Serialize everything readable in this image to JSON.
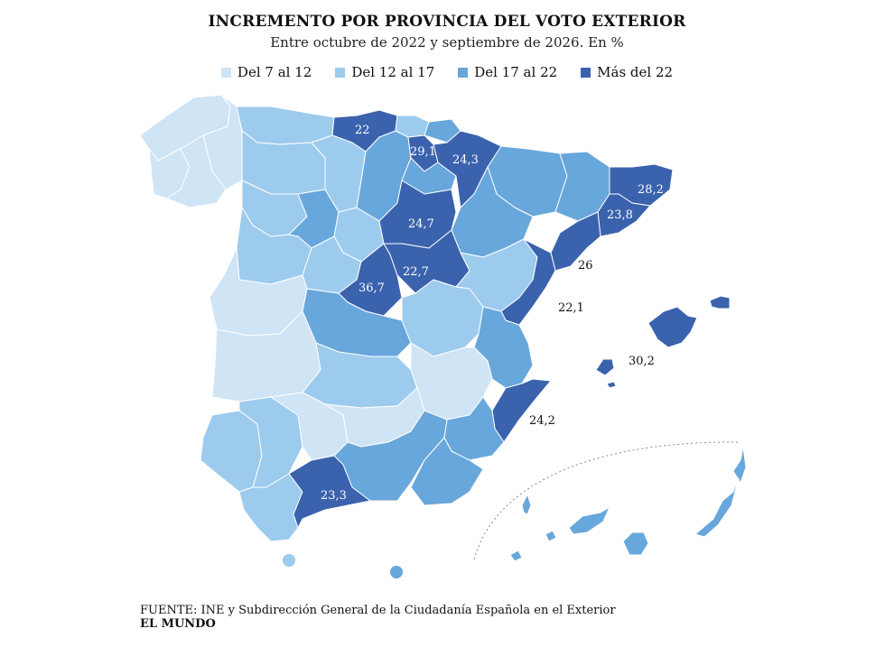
{
  "title": "INCREMENTO POR PROVINCIA DEL VOTO EXTERIOR",
  "subtitle": "Entre octubre de 2022 y septiembre de 2026. En %",
  "legend": [
    {
      "label": "Del 7 al 12",
      "color": "#cfe4f5"
    },
    {
      "label": "Del 12 al 17",
      "color": "#9dcbee"
    },
    {
      "label": "Del 17 al 22",
      "color": "#68a7db"
    },
    {
      "label": "Más del 22",
      "color": "#3b62ad"
    }
  ],
  "labels": {
    "cantabria": "22",
    "alava": "29,1",
    "navarra": "24,3",
    "girona": "28,2",
    "barcelona": "23,8",
    "soria": "24,7",
    "guadalajara": "22,7",
    "madrid": "36,7",
    "tarragona": "26",
    "castellon": "22,1",
    "baleares": "30,2",
    "alicante": "24,2",
    "malaga": "23,3"
  },
  "footer": {
    "source": "FUENTE: INE y Subdirección General de la Ciudadanía Española en el Exterior",
    "brand": "EL MUNDO"
  }
}
